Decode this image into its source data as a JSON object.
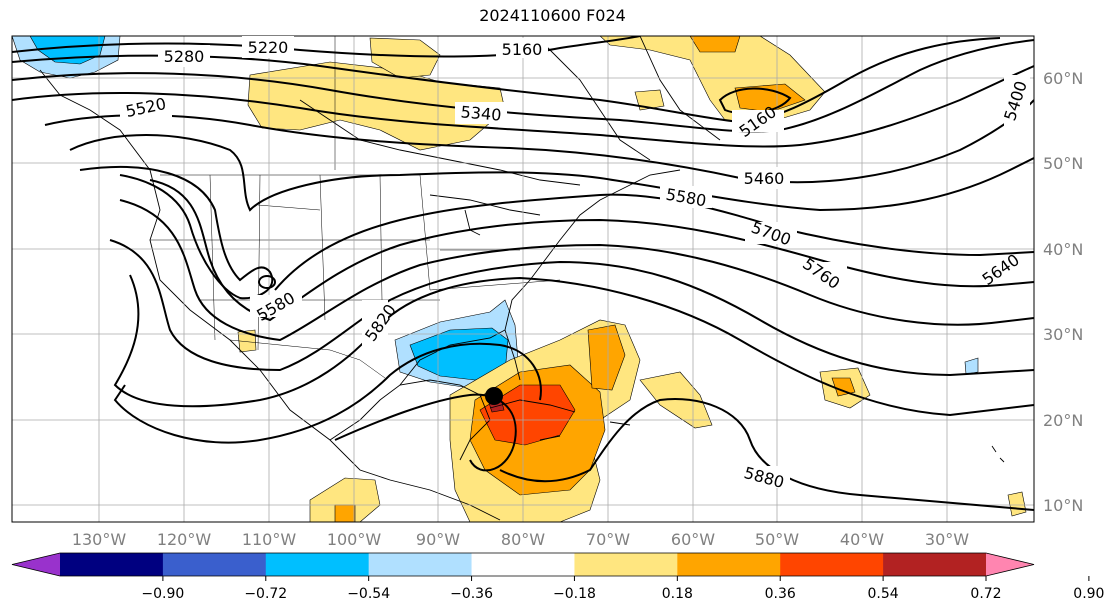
{
  "title": "2024110600 F024",
  "map": {
    "lat_labels": [
      "60°N",
      "50°N",
      "40°N",
      "30°N",
      "20°N",
      "10°N"
    ],
    "lon_labels": [
      "130°W",
      "120°W",
      "110°W",
      "100°W",
      "90°W",
      "80°W",
      "70°W",
      "60°W",
      "50°W",
      "40°W",
      "30°W"
    ],
    "contour_labels": [
      "5280",
      "5220",
      "5160",
      "5520",
      "5340",
      "5160",
      "5460",
      "5400",
      "5580",
      "5700",
      "5760",
      "5640",
      "5580",
      "5820",
      "5880"
    ],
    "storm_marker": "black-dot"
  },
  "colorbar": {
    "colors": [
      "#9932cc",
      "#000080",
      "#3a5fcd",
      "#00bfff",
      "#b0e0ff",
      "#ffffff",
      "#ffe680",
      "#ffa500",
      "#ff4500",
      "#b22222",
      "#ff85b0"
    ],
    "tick_labels": [
      "−0.90",
      "−0.72",
      "−0.54",
      "−0.36",
      "−0.18",
      "0.18",
      "0.36",
      "0.54",
      "0.72",
      "0.90"
    ]
  }
}
